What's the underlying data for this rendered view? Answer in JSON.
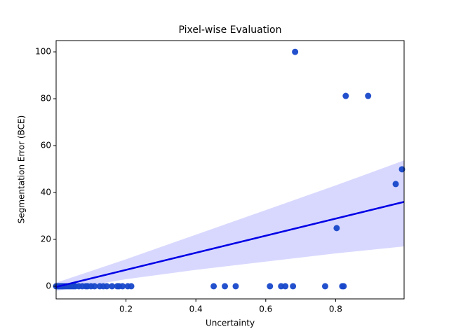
{
  "chart_data": {
    "type": "scatter",
    "title": "Pixel-wise Evaluation",
    "xlabel": "Uncertainty",
    "ylabel": "Segmentation Error (BCE)",
    "xlim": [
      0.0,
      0.996
    ],
    "ylim": [
      -5.4,
      104.8
    ],
    "xticks": [
      0.2,
      0.4,
      0.6,
      0.8
    ],
    "yticks": [
      0,
      20,
      40,
      60,
      80,
      100
    ],
    "grid": false,
    "series": [
      {
        "color": "#1747c9",
        "x": [
          0.0,
          0.004,
          0.008,
          0.012,
          0.016,
          0.02,
          0.025,
          0.03,
          0.035,
          0.04,
          0.045,
          0.05,
          0.055,
          0.065,
          0.075,
          0.085,
          0.09,
          0.1,
          0.11,
          0.125,
          0.135,
          0.145,
          0.16,
          0.175,
          0.18,
          0.19,
          0.205,
          0.215,
          0.451,
          0.483,
          0.514,
          0.612,
          0.644,
          0.656,
          0.678,
          0.77,
          0.819,
          0.823,
          0.684,
          0.829,
          0.893,
          0.99,
          0.972,
          0.803
        ],
        "values": [
          0,
          0,
          0,
          0,
          0,
          0,
          0,
          0,
          0,
          0,
          0,
          0,
          0,
          0,
          0,
          0,
          0,
          0,
          0,
          0,
          0,
          0,
          0,
          0,
          0,
          0,
          0,
          0,
          0,
          0,
          0,
          0,
          0,
          0,
          0,
          0,
          0,
          0,
          100,
          81.2,
          81.2,
          49.9,
          43.6,
          24.8
        ]
      }
    ],
    "regression": {
      "color": "#0000e6",
      "x": [
        0.0,
        0.996
      ],
      "y": [
        -0.3,
        36.0
      ]
    },
    "band": {
      "color": "#d8d8ff",
      "x": [
        0.0,
        0.2,
        0.4,
        0.6,
        0.8,
        0.996
      ],
      "upper": [
        1.5,
        11.5,
        22,
        32.5,
        43,
        53.7
      ],
      "lower": [
        -2,
        3,
        7,
        10.5,
        14,
        17
      ]
    }
  }
}
